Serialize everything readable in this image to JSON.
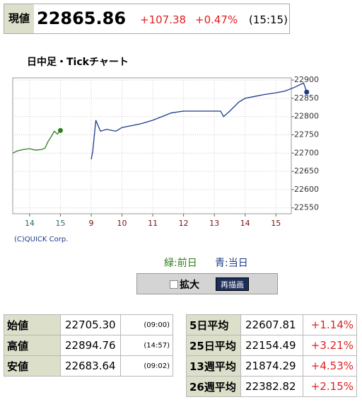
{
  "header": {
    "label": "現値",
    "price": "22865.86",
    "change": "+107.38",
    "percent": "+0.47%",
    "time": "(15:15)"
  },
  "chart_data": {
    "type": "line",
    "title": "日中足・Tickチャート",
    "xticks": [
      {
        "value": 0,
        "label": "14"
      },
      {
        "value": 1,
        "label": "15"
      },
      {
        "value": 2,
        "label": "9"
      },
      {
        "value": 3,
        "label": "10"
      },
      {
        "value": 4,
        "label": "11"
      },
      {
        "value": 5,
        "label": "12"
      },
      {
        "value": 6,
        "label": "13"
      },
      {
        "value": 7,
        "label": "14"
      },
      {
        "value": 8,
        "label": "15"
      }
    ],
    "xlim": [
      -0.55,
      8.5
    ],
    "ylim": [
      22534,
      22906
    ],
    "yticks": [
      22550,
      22600,
      22650,
      22700,
      22750,
      22800,
      22850,
      22900
    ],
    "grid": true,
    "series": [
      {
        "name": "緑:前日",
        "color": "#2e7d1e",
        "x": [
          -0.55,
          -0.4,
          -0.2,
          0,
          0.2,
          0.4,
          0.5,
          0.6,
          0.7,
          0.8,
          0.9,
          1.0
        ],
        "values": [
          22700,
          22706,
          22710,
          22712,
          22708,
          22710,
          22714,
          22732,
          22745,
          22760,
          22752,
          22762
        ]
      },
      {
        "name": "青:当日",
        "color": "#1a3a8a",
        "x": [
          2,
          2.05,
          2.15,
          2.3,
          2.5,
          2.8,
          3,
          3.3,
          3.6,
          4,
          4.3,
          4.6,
          5,
          5.5,
          6,
          6.2,
          6.3,
          6.5,
          6.8,
          7,
          7.3,
          7.6,
          8,
          8.3,
          8.6,
          8.9,
          9.0
        ],
        "values": [
          22683,
          22705,
          22790,
          22760,
          22765,
          22760,
          22770,
          22775,
          22780,
          22790,
          22800,
          22810,
          22815,
          22815,
          22815,
          22815,
          22800,
          22815,
          22840,
          22850,
          22855,
          22860,
          22865,
          22870,
          22880,
          22892,
          22867
        ]
      }
    ]
  },
  "copyright": "(C)QUICK Corp.",
  "controls": {
    "zoom": "拡大",
    "redraw": "再描画"
  },
  "stats": {
    "rows": [
      [
        "始値",
        "22705.30",
        "(09:00)"
      ],
      [
        "高値",
        "22894.76",
        "(14:57)"
      ],
      [
        "安値",
        "22683.64",
        "(09:02)"
      ]
    ]
  },
  "averages": {
    "rows": [
      [
        "5日平均",
        "22607.81",
        "+1.14%"
      ],
      [
        "25日平均",
        "22154.49",
        "+3.21%"
      ],
      [
        "13週平均",
        "21874.29",
        "+4.53%"
      ],
      [
        "26週平均",
        "22382.82",
        "+2.15%"
      ]
    ]
  }
}
